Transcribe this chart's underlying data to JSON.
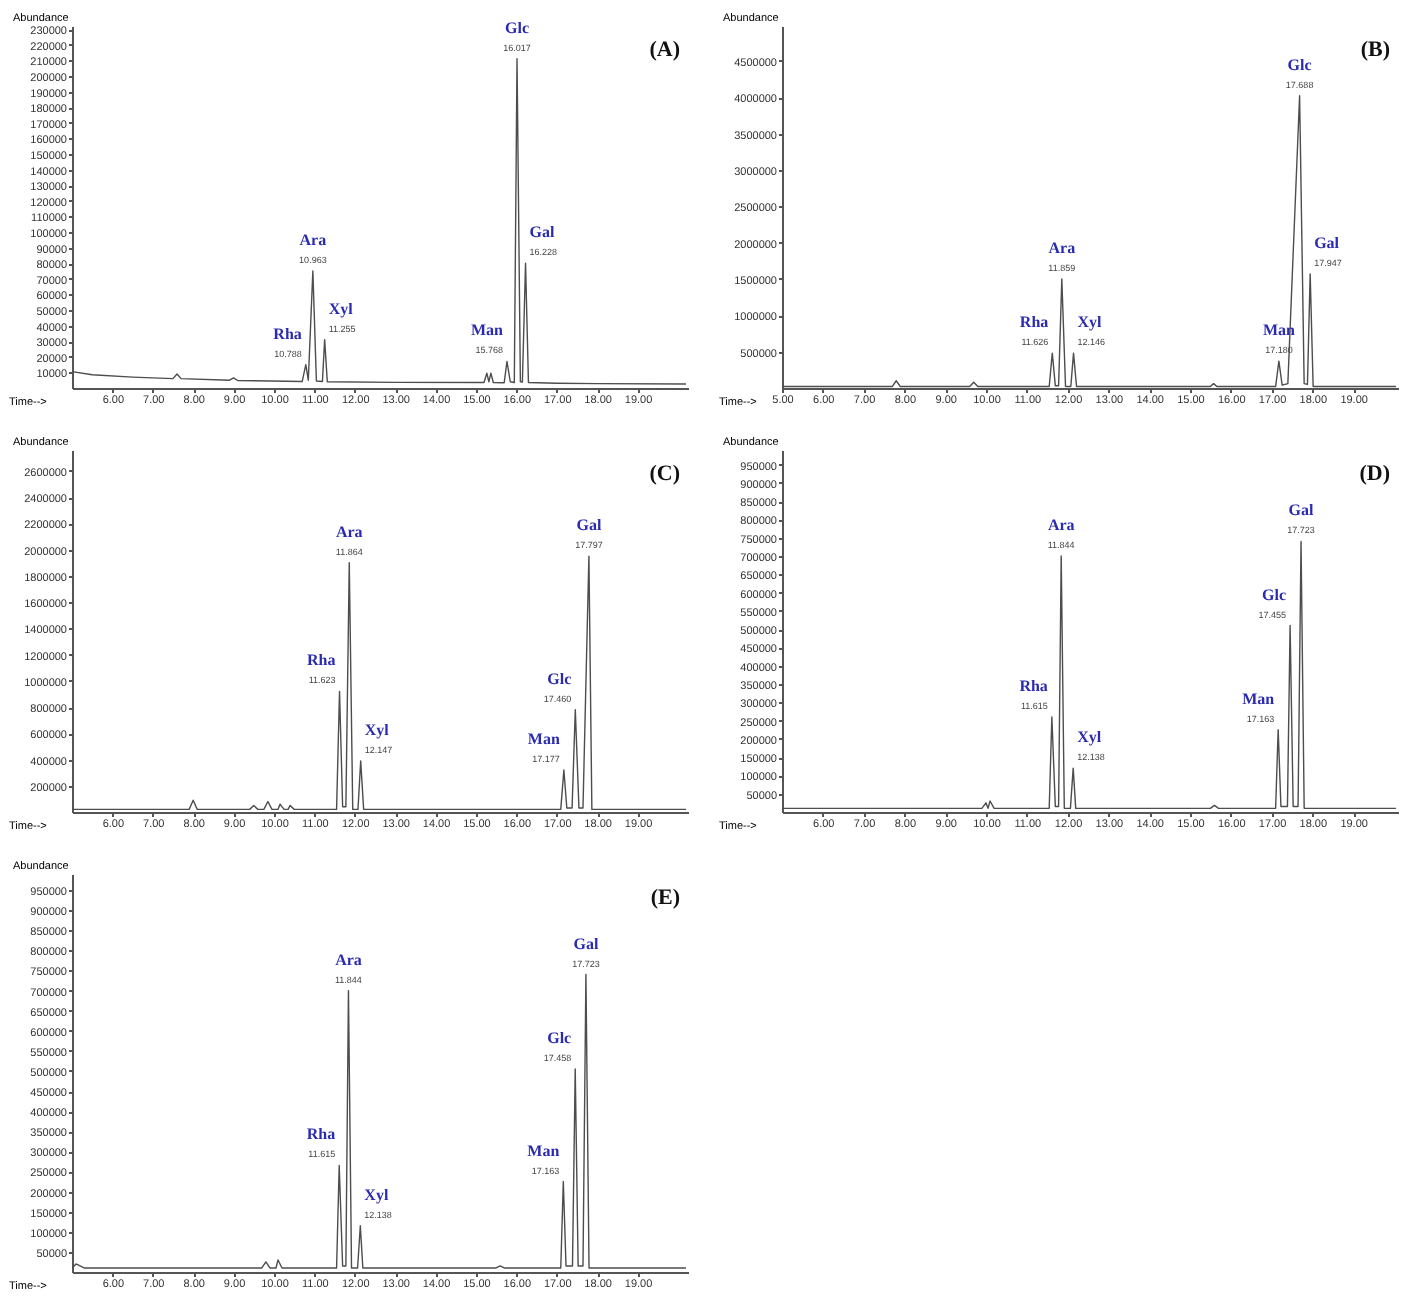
{
  "chart_data": [
    {
      "type": "line",
      "title": "(A)",
      "xlabel": "Time-->",
      "ylabel": "Abundance",
      "xlim": [
        5.0,
        20.25
      ],
      "ylim": [
        0,
        232000
      ],
      "xticks": [
        {
          "value": 6,
          "label": "6.00"
        },
        {
          "value": 7,
          "label": "7.00"
        },
        {
          "value": 8,
          "label": "8.00"
        },
        {
          "value": 9,
          "label": "9.00"
        },
        {
          "value": 10,
          "label": "10.00"
        },
        {
          "value": 11,
          "label": "11.00"
        },
        {
          "value": 12,
          "label": "12.00"
        },
        {
          "value": 13,
          "label": "13.00"
        },
        {
          "value": 14,
          "label": "14.00"
        },
        {
          "value": 15,
          "label": "15.00"
        },
        {
          "value": 16,
          "label": "16.00"
        },
        {
          "value": 17,
          "label": "17.00"
        },
        {
          "value": 18,
          "label": "18.00"
        },
        {
          "value": 19,
          "label": "19.00"
        }
      ],
      "yticks": [
        10000,
        20000,
        30000,
        40000,
        50000,
        60000,
        70000,
        80000,
        90000,
        100000,
        110000,
        120000,
        130000,
        140000,
        150000,
        160000,
        170000,
        180000,
        190000,
        200000,
        210000,
        220000,
        230000
      ],
      "series": [
        {
          "color": "#4d4d4d",
          "x": [
            5.0,
            5.5,
            6.5,
            7.5,
            7.6,
            7.7,
            8.9,
            9.0,
            9.1,
            10.7,
            10.788,
            10.85,
            10.963,
            11.05,
            11.2,
            11.255,
            11.32,
            13.0,
            15.2,
            15.27,
            15.32,
            15.37,
            15.43,
            15.7,
            15.768,
            15.85,
            15.95,
            16.017,
            16.1,
            16.15,
            16.228,
            16.3,
            17.0,
            18.0,
            20.2
          ],
          "values": [
            10500,
            8500,
            7000,
            6000,
            9000,
            6000,
            5000,
            6500,
            4800,
            4200,
            15000,
            5000,
            75000,
            4500,
            4200,
            31000,
            4000,
            3600,
            3500,
            9500,
            4000,
            9500,
            3500,
            3400,
            17000,
            4000,
            3500,
            211000,
            4000,
            3800,
            80000,
            3500,
            3000,
            2800,
            2600
          ]
        }
      ],
      "annotations": [
        {
          "text": "Rha",
          "x": 10.788,
          "y": 15000
        },
        {
          "text": "10.788",
          "x": 10.788,
          "y": 15000
        },
        {
          "text": "Ara",
          "x": 10.963,
          "y": 75000
        },
        {
          "text": "10.963",
          "x": 10.963,
          "y": 75000
        },
        {
          "text": "Xyl",
          "x": 11.255,
          "y": 31000
        },
        {
          "text": "11.255",
          "x": 11.255,
          "y": 31000
        },
        {
          "text": "Man",
          "x": 15.768,
          "y": 17000
        },
        {
          "text": "15.768",
          "x": 15.768,
          "y": 17000
        },
        {
          "text": "Glc",
          "x": 16.017,
          "y": 211000
        },
        {
          "text": "16.017",
          "x": 16.017,
          "y": 211000
        },
        {
          "text": "Gal",
          "x": 16.228,
          "y": 80000
        },
        {
          "text": "16.228",
          "x": 16.228,
          "y": 80000
        }
      ]
    },
    {
      "type": "line",
      "title": "(B)",
      "xlabel": "Time-->",
      "ylabel": "Abundance",
      "xlim": [
        5.0,
        20.1
      ],
      "ylim": [
        0,
        4980000
      ],
      "xticks": [
        {
          "value": 5,
          "label": "5.00"
        },
        {
          "value": 6,
          "label": "6.00"
        },
        {
          "value": 7,
          "label": "7.00"
        },
        {
          "value": 8,
          "label": "8.00"
        },
        {
          "value": 9,
          "label": "9.00"
        },
        {
          "value": 10,
          "label": "10.00"
        },
        {
          "value": 11,
          "label": "11.00"
        },
        {
          "value": 12,
          "label": "12.00"
        },
        {
          "value": 13,
          "label": "13.00"
        },
        {
          "value": 14,
          "label": "14.00"
        },
        {
          "value": 15,
          "label": "15.00"
        },
        {
          "value": 16,
          "label": "16.00"
        },
        {
          "value": 17,
          "label": "17.00"
        },
        {
          "value": 18,
          "label": "18.00"
        },
        {
          "value": 19,
          "label": "19.00"
        }
      ],
      "yticks": [
        500000,
        1000000,
        1500000,
        2000000,
        2500000,
        3000000,
        3500000,
        4000000,
        4500000
      ],
      "series": [
        {
          "color": "#4d4d4d",
          "x": [
            5.0,
            7.7,
            7.8,
            7.9,
            9.6,
            9.7,
            9.8,
            11.55,
            11.626,
            11.7,
            11.78,
            11.859,
            11.95,
            12.08,
            12.146,
            12.22,
            15.5,
            15.58,
            15.66,
            17.1,
            17.18,
            17.26,
            17.4,
            17.688,
            17.8,
            17.88,
            17.947,
            18.02,
            20.05
          ],
          "values": [
            20000,
            20000,
            100000,
            20000,
            20000,
            80000,
            20000,
            20000,
            480000,
            30000,
            30000,
            1500000,
            20000,
            20000,
            480000,
            20000,
            20000,
            60000,
            20000,
            20000,
            370000,
            40000,
            60000,
            4020000,
            60000,
            50000,
            1570000,
            20000,
            20000
          ]
        }
      ],
      "annotations": [
        {
          "text": "Rha",
          "x": 11.626,
          "y": 480000
        },
        {
          "text": "11.626",
          "x": 11.626,
          "y": 480000
        },
        {
          "text": "Ara",
          "x": 11.859,
          "y": 1500000
        },
        {
          "text": "11.859",
          "x": 11.859,
          "y": 1500000
        },
        {
          "text": "Xyl",
          "x": 12.146,
          "y": 480000
        },
        {
          "text": "12.146",
          "x": 12.146,
          "y": 480000
        },
        {
          "text": "Man",
          "x": 17.18,
          "y": 370000
        },
        {
          "text": "17.180",
          "x": 17.18,
          "y": 370000
        },
        {
          "text": "Glc",
          "x": 17.688,
          "y": 4020000
        },
        {
          "text": "17.688",
          "x": 17.688,
          "y": 4020000
        },
        {
          "text": "Gal",
          "x": 17.947,
          "y": 1570000
        },
        {
          "text": "17.947",
          "x": 17.947,
          "y": 1570000
        }
      ]
    },
    {
      "type": "line",
      "title": "(C)",
      "xlabel": "Time-->",
      "ylabel": "Abundance",
      "xlim": [
        5.0,
        20.25
      ],
      "ylim": [
        0,
        2760000
      ],
      "xticks": [
        {
          "value": 6,
          "label": "6.00"
        },
        {
          "value": 7,
          "label": "7.00"
        },
        {
          "value": 8,
          "label": "8.00"
        },
        {
          "value": 9,
          "label": "9.00"
        },
        {
          "value": 10,
          "label": "10.00"
        },
        {
          "value": 11,
          "label": "11.00"
        },
        {
          "value": 12,
          "label": "12.00"
        },
        {
          "value": 13,
          "label": "13.00"
        },
        {
          "value": 14,
          "label": "14.00"
        },
        {
          "value": 15,
          "label": "15.00"
        },
        {
          "value": 16,
          "label": "16.00"
        },
        {
          "value": 17,
          "label": "17.00"
        },
        {
          "value": 18,
          "label": "18.00"
        },
        {
          "value": 19,
          "label": "19.00"
        }
      ],
      "yticks": [
        200000,
        400000,
        600000,
        800000,
        1000000,
        1200000,
        1400000,
        1600000,
        1800000,
        2000000,
        2200000,
        2400000,
        2600000
      ],
      "series": [
        {
          "color": "#4d4d4d",
          "x": [
            5.0,
            7.9,
            8.0,
            8.1,
            9.4,
            9.5,
            9.6,
            9.75,
            9.85,
            9.95,
            10.1,
            10.15,
            10.25,
            10.35,
            10.4,
            10.5,
            11.55,
            11.623,
            11.7,
            11.78,
            11.864,
            11.95,
            12.08,
            12.147,
            12.22,
            17.1,
            17.177,
            17.25,
            17.38,
            17.46,
            17.55,
            17.65,
            17.797,
            17.87,
            20.2
          ],
          "values": [
            20000,
            20000,
            90000,
            20000,
            20000,
            50000,
            20000,
            20000,
            80000,
            20000,
            20000,
            60000,
            20000,
            20000,
            50000,
            20000,
            20000,
            920000,
            40000,
            40000,
            1900000,
            20000,
            20000,
            390000,
            20000,
            20000,
            320000,
            30000,
            30000,
            780000,
            30000,
            30000,
            1950000,
            20000,
            20000
          ]
        }
      ],
      "annotations": [
        {
          "text": "Rha",
          "x": 11.623,
          "y": 920000
        },
        {
          "text": "11.623",
          "x": 11.623,
          "y": 920000
        },
        {
          "text": "Ara",
          "x": 11.864,
          "y": 1900000
        },
        {
          "text": "11.864",
          "x": 11.864,
          "y": 1900000
        },
        {
          "text": "Xyl",
          "x": 12.147,
          "y": 390000
        },
        {
          "text": "12.147",
          "x": 12.147,
          "y": 390000
        },
        {
          "text": "Man",
          "x": 17.177,
          "y": 320000
        },
        {
          "text": "17.177",
          "x": 17.177,
          "y": 320000
        },
        {
          "text": "Glc",
          "x": 17.46,
          "y": 780000
        },
        {
          "text": "17.460",
          "x": 17.46,
          "y": 780000
        },
        {
          "text": "Gal",
          "x": 17.797,
          "y": 1950000
        },
        {
          "text": "17.797",
          "x": 17.797,
          "y": 1950000
        }
      ]
    },
    {
      "type": "line",
      "title": "(D)",
      "xlabel": "Time-->",
      "ylabel": "Abundance",
      "xlim": [
        5.0,
        20.1
      ],
      "ylim": [
        0,
        990000
      ],
      "xticks": [
        {
          "value": 6,
          "label": "6.00"
        },
        {
          "value": 7,
          "label": "7.00"
        },
        {
          "value": 8,
          "label": "8.00"
        },
        {
          "value": 9,
          "label": "9.00"
        },
        {
          "value": 10,
          "label": "10.00"
        },
        {
          "value": 11,
          "label": "11.00"
        },
        {
          "value": 12,
          "label": "12.00"
        },
        {
          "value": 13,
          "label": "13.00"
        },
        {
          "value": 14,
          "label": "14.00"
        },
        {
          "value": 15,
          "label": "15.00"
        },
        {
          "value": 16,
          "label": "16.00"
        },
        {
          "value": 17,
          "label": "17.00"
        },
        {
          "value": 18,
          "label": "18.00"
        },
        {
          "value": 19,
          "label": "19.00"
        }
      ],
      "yticks": [
        50000,
        100000,
        150000,
        200000,
        250000,
        300000,
        350000,
        400000,
        450000,
        500000,
        550000,
        600000,
        650000,
        700000,
        750000,
        800000,
        850000,
        900000,
        950000
      ],
      "series": [
        {
          "color": "#4d4d4d",
          "x": [
            5.0,
            9.9,
            10.0,
            10.05,
            10.1,
            10.2,
            11.55,
            11.615,
            11.7,
            11.78,
            11.844,
            11.92,
            12.07,
            12.138,
            12.2,
            15.5,
            15.6,
            15.7,
            17.1,
            17.163,
            17.23,
            17.39,
            17.455,
            17.53,
            17.65,
            17.723,
            17.8,
            20.05
          ],
          "values": [
            10000,
            10000,
            25000,
            10000,
            30000,
            10000,
            10000,
            260000,
            15000,
            15000,
            700000,
            10000,
            10000,
            120000,
            10000,
            10000,
            18000,
            10000,
            10000,
            225000,
            15000,
            15000,
            510000,
            15000,
            15000,
            740000,
            10000,
            10000
          ]
        }
      ],
      "annotations": [
        {
          "text": "Rha",
          "x": 11.615,
          "y": 260000
        },
        {
          "text": "11.615",
          "x": 11.615,
          "y": 260000
        },
        {
          "text": "Ara",
          "x": 11.844,
          "y": 700000
        },
        {
          "text": "11.844",
          "x": 11.844,
          "y": 700000
        },
        {
          "text": "Xyl",
          "x": 12.138,
          "y": 120000
        },
        {
          "text": "12.138",
          "x": 12.138,
          "y": 120000
        },
        {
          "text": "Man",
          "x": 17.163,
          "y": 225000
        },
        {
          "text": "17.163",
          "x": 17.163,
          "y": 225000
        },
        {
          "text": "Glc",
          "x": 17.455,
          "y": 510000
        },
        {
          "text": "17.455",
          "x": 17.455,
          "y": 510000
        },
        {
          "text": "Gal",
          "x": 17.723,
          "y": 740000
        },
        {
          "text": "17.723",
          "x": 17.723,
          "y": 740000
        }
      ]
    },
    {
      "type": "line",
      "title": "(E)",
      "xlabel": "Time-->",
      "ylabel": "Abundance",
      "xlim": [
        5.0,
        20.25
      ],
      "ylim": [
        0,
        990000
      ],
      "xticks": [
        {
          "value": 6,
          "label": "6.00"
        },
        {
          "value": 7,
          "label": "7.00"
        },
        {
          "value": 8,
          "label": "8.00"
        },
        {
          "value": 9,
          "label": "9.00"
        },
        {
          "value": 10,
          "label": "10.00"
        },
        {
          "value": 11,
          "label": "11.00"
        },
        {
          "value": 12,
          "label": "12.00"
        },
        {
          "value": 13,
          "label": "13.00"
        },
        {
          "value": 14,
          "label": "14.00"
        },
        {
          "value": 15,
          "label": "15.00"
        },
        {
          "value": 16,
          "label": "16.00"
        },
        {
          "value": 17,
          "label": "17.00"
        },
        {
          "value": 18,
          "label": "18.00"
        },
        {
          "value": 19,
          "label": "19.00"
        }
      ],
      "yticks": [
        50000,
        100000,
        150000,
        200000,
        250000,
        300000,
        350000,
        400000,
        450000,
        500000,
        550000,
        600000,
        650000,
        700000,
        750000,
        800000,
        850000,
        900000,
        950000
      ],
      "series": [
        {
          "color": "#4d4d4d",
          "x": [
            5.0,
            5.1,
            5.3,
            9.7,
            9.8,
            9.9,
            10.05,
            10.1,
            10.2,
            11.55,
            11.615,
            11.7,
            11.78,
            11.844,
            11.92,
            12.07,
            12.138,
            12.2,
            15.5,
            15.6,
            15.7,
            17.1,
            17.163,
            17.23,
            17.39,
            17.458,
            17.53,
            17.65,
            17.723,
            17.8,
            20.2
          ],
          "values": [
            10000,
            20000,
            10000,
            10000,
            25000,
            10000,
            10000,
            30000,
            10000,
            10000,
            265000,
            15000,
            15000,
            700000,
            10000,
            10000,
            115000,
            10000,
            10000,
            15000,
            10000,
            10000,
            225000,
            15000,
            15000,
            505000,
            15000,
            15000,
            740000,
            10000,
            10000
          ]
        }
      ],
      "annotations": [
        {
          "text": "Rha",
          "x": 11.615,
          "y": 265000
        },
        {
          "text": "11.615",
          "x": 11.615,
          "y": 265000
        },
        {
          "text": "Ara",
          "x": 11.844,
          "y": 700000
        },
        {
          "text": "11.844",
          "x": 11.844,
          "y": 700000
        },
        {
          "text": "Xyl",
          "x": 12.138,
          "y": 115000
        },
        {
          "text": "12.138",
          "x": 12.138,
          "y": 115000
        },
        {
          "text": "Man",
          "x": 17.163,
          "y": 225000
        },
        {
          "text": "17.163",
          "x": 17.163,
          "y": 225000
        },
        {
          "text": "Glc",
          "x": 17.458,
          "y": 505000
        },
        {
          "text": "17.458",
          "x": 17.458,
          "y": 505000
        },
        {
          "text": "Gal",
          "x": 17.723,
          "y": 740000
        },
        {
          "text": "17.723",
          "x": 17.723,
          "y": 740000
        }
      ]
    }
  ]
}
